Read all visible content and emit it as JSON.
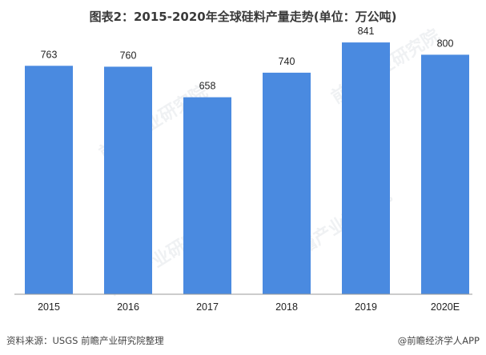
{
  "title": "图表2：2015-2020年全球硅料产量走势(单位：万公吨)",
  "source": "资料来源：USGS 前瞻产业研究院整理",
  "credit": "@前瞻经济学人APP",
  "watermark": "前瞻产业研究院",
  "colors": {
    "bar": "#4a8ae0"
  },
  "chart_data": {
    "type": "bar",
    "title": "图表2：2015-2020年全球硅料产量走势(单位：万公吨)",
    "categories": [
      "2015",
      "2016",
      "2017",
      "2018",
      "2019",
      "2020E"
    ],
    "values": [
      763,
      760,
      658,
      740,
      841,
      800
    ],
    "ylim": [
      0,
      900
    ],
    "grid": false,
    "legend": "none"
  }
}
